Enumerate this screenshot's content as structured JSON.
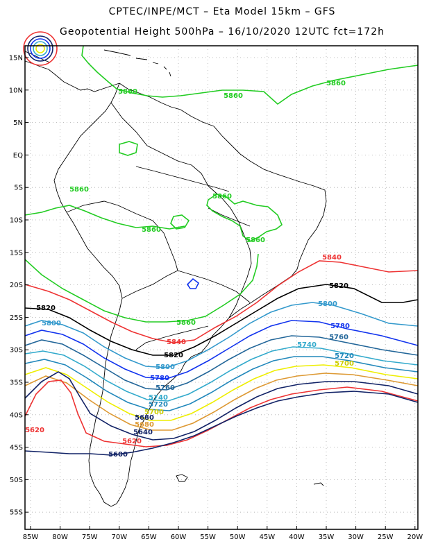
{
  "title": {
    "line1": "CPTEC/INPE/MCT –  Eta Model 15km – GFS",
    "line2": "Geopotential Height 500hPa – 16/10/2020 12UTC fct=172h"
  },
  "axes": {
    "lat_labels": [
      "15N",
      "10N",
      "5N",
      "EQ",
      "5S",
      "10S",
      "15S",
      "20S",
      "25S",
      "30S",
      "35S",
      "40S",
      "45S",
      "50S",
      "55S"
    ],
    "lon_labels": [
      "85W",
      "80W",
      "75W",
      "70W",
      "65W",
      "60W",
      "55W",
      "50W",
      "45W",
      "40W",
      "35W",
      "30W",
      "25W",
      "20W"
    ]
  },
  "colors": {
    "c5860": "#22cc22",
    "c5840": "#ee3333",
    "c5820": "#000000",
    "c5800": "#3399cc",
    "c5780": "#1133ee",
    "c5760": "#226699",
    "c5740": "#33aacc",
    "c5720": "#2288bb",
    "c5700": "#eeee00",
    "c5680": "#dd9933",
    "c5640": "#112266",
    "c5620": "#ee3333",
    "c5600": "#112266"
  },
  "contour_labels": {
    "l5860a": "5860",
    "l5860b": "5860",
    "l5860c": "5860",
    "l5860d": "5860",
    "l5860e": "5860",
    "l5860f": "5860",
    "l5860g": "5860",
    "l5860h": "5860",
    "l5840a": "5840",
    "l5840b": "5840",
    "l5820a": "5820",
    "l5820b": "5820",
    "l5820c": "5820",
    "l5800a": "5800",
    "l5800b": "5800",
    "l5800c": "5800",
    "l5780a": "5780",
    "l5780b": "5780",
    "l5760a": "5760",
    "l5760b": "5760",
    "l5740a": "5740",
    "l5740b": "5740",
    "l5720a": "5720",
    "l5720b": "5720",
    "l5700a": "5700",
    "l5700b": "5700",
    "l5680a": "5680",
    "l5680b": "5680",
    "l5640a": "5640",
    "l5620a": "5620",
    "l5620b": "5620",
    "l5600a": "5600"
  }
}
